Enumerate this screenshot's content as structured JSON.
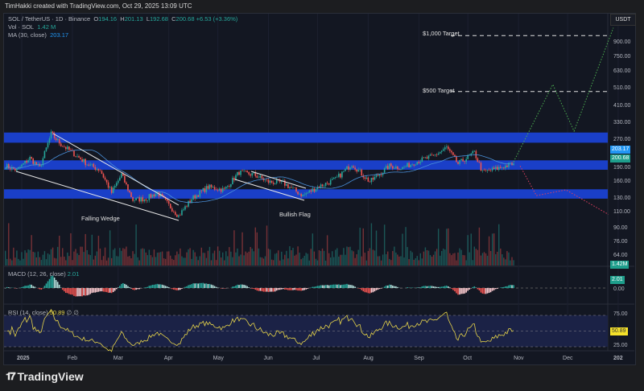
{
  "credit": "TimHakki created with TradingView.com, Oct 29, 2025 13:09 UTC",
  "legend": {
    "symbol": "SOL / TetherUS · 1D · Binance",
    "o_label": "O",
    "o": "194.16",
    "h_label": "H",
    "h": "201.13",
    "l_label": "L",
    "l": "192.68",
    "c_label": "C",
    "c": "200.68",
    "change": "+6.53 (+3.36%)",
    "vol_label": "Vol · SOL",
    "vol": "1.42 M",
    "ma_label": "MA (30, close)",
    "ma": "203.17"
  },
  "currency": "USDT",
  "macd": {
    "label": "MACD (12, 26, close)",
    "value": "2.01"
  },
  "rsi": {
    "label": "RSI (14, close)",
    "value": "50.89",
    "icons": "∅ ∅"
  },
  "logo": "TradingView",
  "colors": {
    "up": "#26a69a",
    "down": "#ef5350",
    "zone": "#1a3fc8",
    "ma": "#4a90d9",
    "rsi": "#e5d34a",
    "bull_path": "#4caf50",
    "bear_path": "#e04060"
  },
  "annotations": {
    "wedge": "Falling Wedge",
    "flag": "Bullish Flag",
    "target1000": "$1,000 Target",
    "target500": "$500 Target"
  },
  "chart_data": {
    "type": "candlestick",
    "scale": "log",
    "price_ticks": [
      "900.00",
      "750.00",
      "630.00",
      "510.00",
      "410.00",
      "330.00",
      "270.00",
      "190.00",
      "160.00",
      "130.00",
      "110.00",
      "90.00",
      "76.00",
      "64.00"
    ],
    "price_tick_values": [
      900,
      750,
      630,
      510,
      410,
      330,
      270,
      190,
      160,
      130,
      110,
      90,
      76,
      64
    ],
    "time_ticks": [
      "2025",
      "Feb",
      "Mar",
      "Apr",
      "May",
      "Jun",
      "Jul",
      "Aug",
      "Sep",
      "Oct",
      "Nov",
      "Dec",
      "202"
    ],
    "time_tick_dates": [
      "2025-01-01",
      "2025-02-01",
      "2025-03-01",
      "2025-04-01",
      "2025-05-01",
      "2025-06-01",
      "2025-07-01",
      "2025-08-01",
      "2025-09-01",
      "2025-10-01",
      "2025-11-01",
      "2025-12-01",
      "2026-01-01"
    ],
    "price_path": [
      [
        "2024-12-22",
        195
      ],
      [
        "2024-12-29",
        185
      ],
      [
        "2025-01-06",
        215
      ],
      [
        "2025-01-12",
        190
      ],
      [
        "2025-01-19",
        290
      ],
      [
        "2025-01-25",
        255
      ],
      [
        "2025-02-01",
        230
      ],
      [
        "2025-02-10",
        200
      ],
      [
        "2025-02-18",
        185
      ],
      [
        "2025-02-25",
        140
      ],
      [
        "2025-03-03",
        175
      ],
      [
        "2025-03-10",
        128
      ],
      [
        "2025-03-18",
        130
      ],
      [
        "2025-03-25",
        140
      ],
      [
        "2025-04-07",
        105
      ],
      [
        "2025-04-15",
        130
      ],
      [
        "2025-04-25",
        150
      ],
      [
        "2025-05-05",
        145
      ],
      [
        "2025-05-14",
        180
      ],
      [
        "2025-05-23",
        175
      ],
      [
        "2025-06-01",
        160
      ],
      [
        "2025-06-10",
        158
      ],
      [
        "2025-06-22",
        135
      ],
      [
        "2025-07-01",
        150
      ],
      [
        "2025-07-12",
        165
      ],
      [
        "2025-07-22",
        200
      ],
      [
        "2025-08-02",
        160
      ],
      [
        "2025-08-14",
        195
      ],
      [
        "2025-08-22",
        190
      ],
      [
        "2025-08-30",
        205
      ],
      [
        "2025-09-10",
        220
      ],
      [
        "2025-09-18",
        245
      ],
      [
        "2025-09-25",
        200
      ],
      [
        "2025-10-05",
        230
      ],
      [
        "2025-10-10",
        180
      ],
      [
        "2025-10-20",
        190
      ],
      [
        "2025-10-29",
        200.68
      ]
    ],
    "zones": [
      [
        260,
        295
      ],
      [
        186,
        209
      ],
      [
        130,
        146
      ]
    ],
    "targets": [
      {
        "label": "$1,000 Target",
        "price": 1000
      },
      {
        "label": "$500 Target",
        "price": 500
      }
    ],
    "bull_projection": [
      [
        "2025-10-29",
        205
      ],
      [
        "2025-11-22",
        535
      ],
      [
        "2025-12-05",
        300
      ],
      [
        "2025-12-29",
        1080
      ]
    ],
    "bear_projection": [
      [
        "2025-11-02",
        195
      ],
      [
        "2025-11-12",
        135
      ],
      [
        "2025-11-30",
        145
      ],
      [
        "2025-12-26",
        107
      ]
    ],
    "last_ma": 203.17,
    "last_close": 200.68,
    "last_volume": "1.42M",
    "macd_last": 2.01,
    "rsi_last": 50.89,
    "rsi_levels": [
      75,
      50,
      25
    ]
  }
}
